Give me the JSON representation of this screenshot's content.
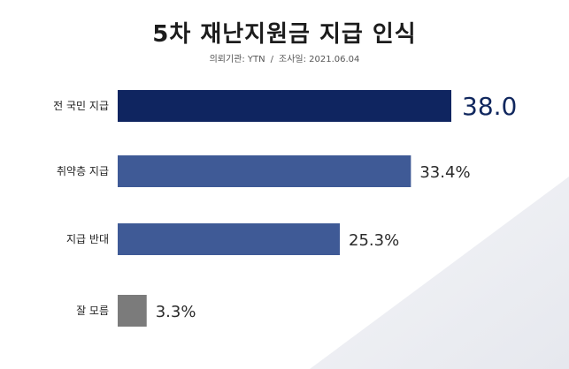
{
  "title": "5차 재난지원금 지급 인식",
  "subtitle": {
    "agency": "의뢰기관: YTN",
    "separator": "/",
    "date": "조사일: 2021.06.04"
  },
  "colors": {
    "highlight": "#0f2560",
    "primary": "#3f5a96",
    "neutral": "#7b7b7b"
  },
  "chart_data": {
    "type": "bar",
    "orientation": "horizontal",
    "categories": [
      "전 국민 지급",
      "취약층 지급",
      "지급 반대",
      "잘 모름"
    ],
    "values": [
      38.0,
      33.4,
      25.3,
      3.3
    ],
    "value_labels": [
      "38.0",
      "33.4%",
      "25.3%",
      "3.3%"
    ],
    "bar_colors": [
      "#0f2560",
      "#3f5a96",
      "#3f5a96",
      "#7b7b7b"
    ],
    "xlim": [
      0,
      38.0
    ],
    "grid": false,
    "legend": "none"
  }
}
